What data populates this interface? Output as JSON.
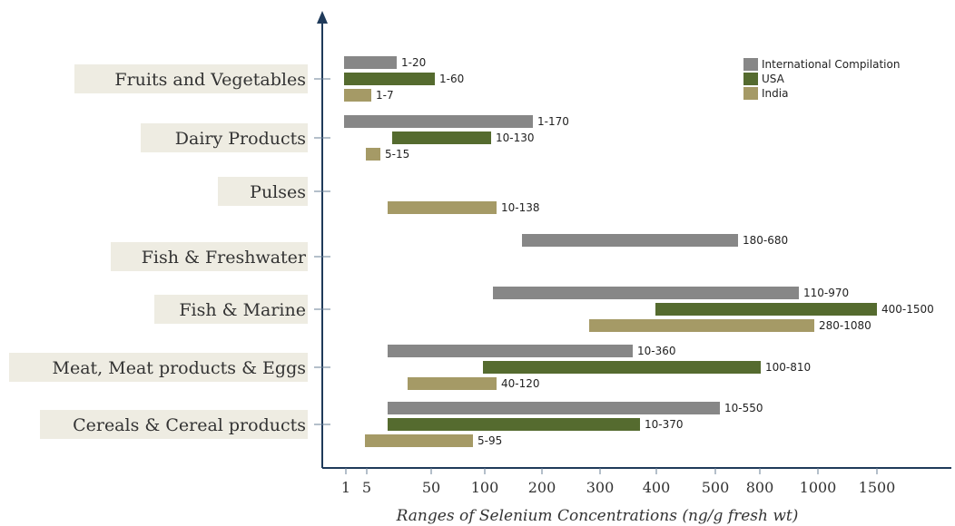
{
  "chart_data": {
    "type": "bar",
    "orientation": "horizontal-range",
    "xlabel": "Ranges of Selenium Concentrations (ng/g fresh wt)",
    "x_ticks": [
      "1",
      "5",
      "50",
      "100",
      "200",
      "300",
      "400",
      "500",
      "800",
      "1000",
      "1500"
    ],
    "categories": [
      "Fruits and Vegetables",
      "Dairy Products",
      "Pulses",
      "Fish & Freshwater",
      "Fish & Marine",
      "Meat, Meat products & Eggs",
      "Cereals & Cereal products"
    ],
    "series": [
      {
        "name": "International Compilation",
        "color": "#878787",
        "ranges": [
          {
            "category": "Fruits and Vegetables",
            "low": 1,
            "high": 20,
            "label": "1-20"
          },
          {
            "category": "Dairy Products",
            "low": 1,
            "high": 170,
            "label": "1-170"
          },
          {
            "category": "Fish & Freshwater",
            "low": 180,
            "high": 680,
            "label": "180-680"
          },
          {
            "category": "Fish & Marine",
            "low": 110,
            "high": 970,
            "label": "110-970"
          },
          {
            "category": "Meat, Meat products & Eggs",
            "low": 10,
            "high": 360,
            "label": "10-360"
          },
          {
            "category": "Cereals & Cereal products",
            "low": 10,
            "high": 550,
            "label": "10-550"
          }
        ]
      },
      {
        "name": "USA",
        "color": "#556b2f",
        "ranges": [
          {
            "category": "Fruits and Vegetables",
            "low": 1,
            "high": 60,
            "label": "1-60"
          },
          {
            "category": "Dairy Products",
            "low": 10,
            "high": 130,
            "label": "10-130"
          },
          {
            "category": "Fish & Marine",
            "low": 400,
            "high": 1500,
            "label": "400-1500"
          },
          {
            "category": "Meat, Meat products & Eggs",
            "low": 100,
            "high": 810,
            "label": "100-810"
          },
          {
            "category": "Cereals & Cereal products",
            "low": 10,
            "high": 370,
            "label": "10-370"
          }
        ]
      },
      {
        "name": "India",
        "color": "#a59a66",
        "ranges": [
          {
            "category": "Fruits and Vegetables",
            "low": 1,
            "high": 7,
            "label": "1-7"
          },
          {
            "category": "Dairy Products",
            "low": 5,
            "high": 15,
            "label": "5-15"
          },
          {
            "category": "Pulses",
            "low": 10,
            "high": 138,
            "label": "10-138"
          },
          {
            "category": "Fish & Marine",
            "low": 280,
            "high": 1080,
            "label": "280-1080"
          },
          {
            "category": "Meat, Meat products & Eggs",
            "low": 40,
            "high": 120,
            "label": "40-120"
          },
          {
            "category": "Cereals & Cereal products",
            "low": 5,
            "high": 95,
            "label": "5-95"
          }
        ]
      }
    ],
    "legend": {
      "position": "top-right"
    },
    "grid": false
  }
}
